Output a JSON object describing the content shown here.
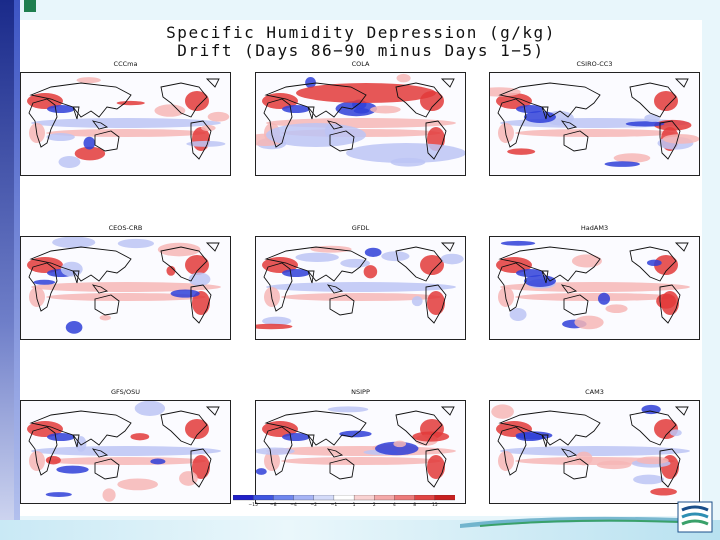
{
  "title": {
    "line1": "Specific Humidity Depression (g/kg)",
    "line2": "Drift (Days 86−90 minus Days 1−5)"
  },
  "colors": {
    "strong_red": "#e23a3a",
    "light_red": "#f6b6b6",
    "strong_blue": "#2f3fd8",
    "light_blue": "#bcc4f4",
    "land_outline": "#111111"
  },
  "chart_data": {
    "type": "heatmap",
    "title": "Specific Humidity Depression (g/kg) Drift (Days 86−90 minus Days 1−5)",
    "panels": [
      {
        "name": "CCCma"
      },
      {
        "name": "COLA"
      },
      {
        "name": "CSIRO-CC3"
      },
      {
        "name": "CEOS-CRB"
      },
      {
        "name": "GFDL"
      },
      {
        "name": "HadAM3"
      },
      {
        "name": "GFS/OSU"
      },
      {
        "name": "NSIPP"
      },
      {
        "name": "CAM3"
      }
    ],
    "colorbar": {
      "labels": [
        "−15",
        "−8",
        "−4",
        "−2",
        "−1",
        "1",
        "2",
        "4",
        "8",
        "15"
      ],
      "colors": [
        "#2020c8",
        "#3f55e0",
        "#6f86ee",
        "#a6b4f5",
        "#d4dbf9",
        "#ffffff",
        "#f9d2d2",
        "#f4a9a9",
        "#ec7a7a",
        "#e04444",
        "#c82020"
      ]
    }
  }
}
